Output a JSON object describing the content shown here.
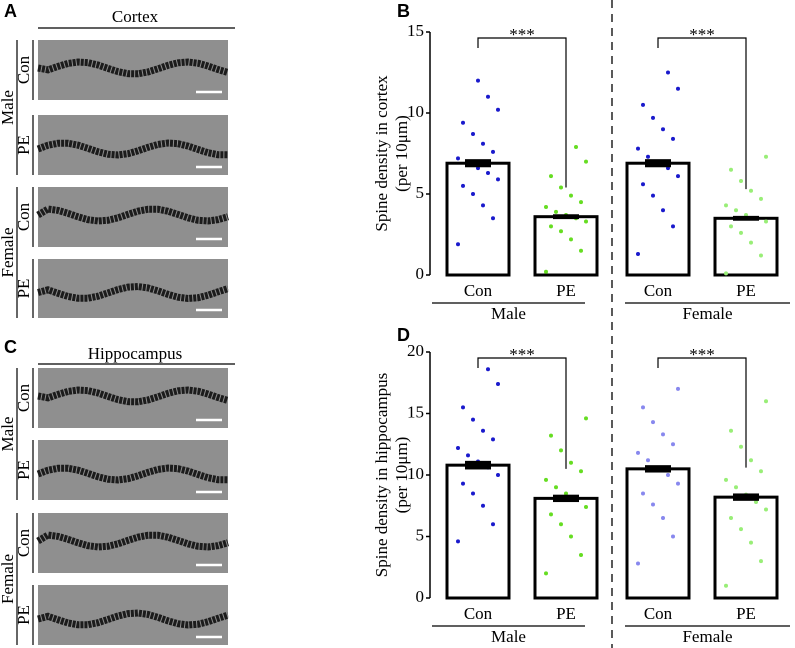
{
  "image_panels": [
    {
      "label": "A",
      "title": "Cortex",
      "groups": [
        "Male",
        "Female"
      ],
      "rows": [
        "Con",
        "PE",
        "Con",
        "PE"
      ]
    },
    {
      "label": "C",
      "title": "Hippocampus",
      "groups": [
        "Male",
        "Female"
      ],
      "rows": [
        "Con",
        "PE",
        "Con",
        "PE"
      ]
    }
  ],
  "chart_data": [
    {
      "type": "bar",
      "panel": "B",
      "ylabel": [
        "Spine density in cortex",
        "(per 10μm)"
      ],
      "categories": [
        "Con",
        "PE",
        "Con",
        "PE"
      ],
      "groups": [
        "Male",
        "Female"
      ],
      "values": [
        6.9,
        3.6,
        6.9,
        3.5
      ],
      "errors": [
        0.25,
        0.15,
        0.25,
        0.15
      ],
      "colors": [
        "#1a1acc",
        "#66dd22",
        "#1a1acc",
        "#99ee77"
      ],
      "points": [
        [
          1.9,
          3.5,
          4.3,
          5.0,
          5.5,
          5.9,
          6.3,
          6.6,
          6.9,
          7.2,
          7.6,
          8.1,
          8.7,
          9.4,
          10.2,
          11.0,
          12.0
        ],
        [
          0.2,
          1.5,
          2.2,
          2.7,
          3.0,
          3.3,
          3.5,
          3.7,
          3.9,
          4.2,
          4.5,
          4.9,
          5.4,
          6.1,
          7.0,
          7.9
        ],
        [
          1.3,
          3.0,
          4.0,
          4.9,
          5.6,
          6.1,
          6.6,
          6.9,
          7.3,
          7.8,
          8.4,
          9.0,
          9.7,
          10.5,
          11.5,
          12.5
        ],
        [
          0.1,
          1.2,
          2.0,
          2.6,
          3.0,
          3.3,
          3.5,
          3.7,
          4.0,
          4.3,
          4.7,
          5.2,
          5.8,
          6.5,
          7.3
        ]
      ],
      "significance_labels": [
        "***",
        "***"
      ],
      "ylim": [
        0,
        15
      ],
      "yticks": [
        0,
        5,
        10,
        15
      ]
    },
    {
      "type": "bar",
      "panel": "D",
      "ylabel": [
        "Spine density in hippocampus",
        "(per 10μm)"
      ],
      "categories": [
        "Con",
        "PE",
        "Con",
        "PE"
      ],
      "groups": [
        "Male",
        "Female"
      ],
      "values": [
        10.8,
        8.1,
        10.5,
        8.2
      ],
      "errors": [
        0.35,
        0.3,
        0.3,
        0.3
      ],
      "colors": [
        "#1a1acc",
        "#66dd22",
        "#8888ee",
        "#99ee77"
      ],
      "points": [
        [
          4.6,
          6.0,
          7.5,
          8.5,
          9.3,
          10.0,
          10.6,
          11.1,
          11.6,
          12.2,
          12.9,
          13.6,
          14.5,
          15.5,
          17.4,
          18.6
        ],
        [
          2.0,
          3.5,
          5.0,
          6.0,
          6.8,
          7.4,
          8.0,
          8.5,
          9.0,
          9.6,
          10.3,
          11.0,
          12.0,
          13.2,
          14.6
        ],
        [
          2.8,
          5.0,
          6.5,
          7.6,
          8.5,
          9.3,
          10.0,
          10.6,
          11.2,
          11.8,
          12.5,
          13.3,
          14.3,
          15.5,
          17.0
        ],
        [
          1.0,
          3.0,
          4.5,
          5.6,
          6.5,
          7.2,
          7.8,
          8.4,
          9.0,
          9.6,
          10.3,
          11.2,
          12.3,
          13.6,
          16.0
        ]
      ],
      "significance_labels": [
        "***",
        "***"
      ],
      "ylim": [
        0,
        20
      ],
      "yticks": [
        0,
        5,
        10,
        15,
        20
      ]
    }
  ]
}
